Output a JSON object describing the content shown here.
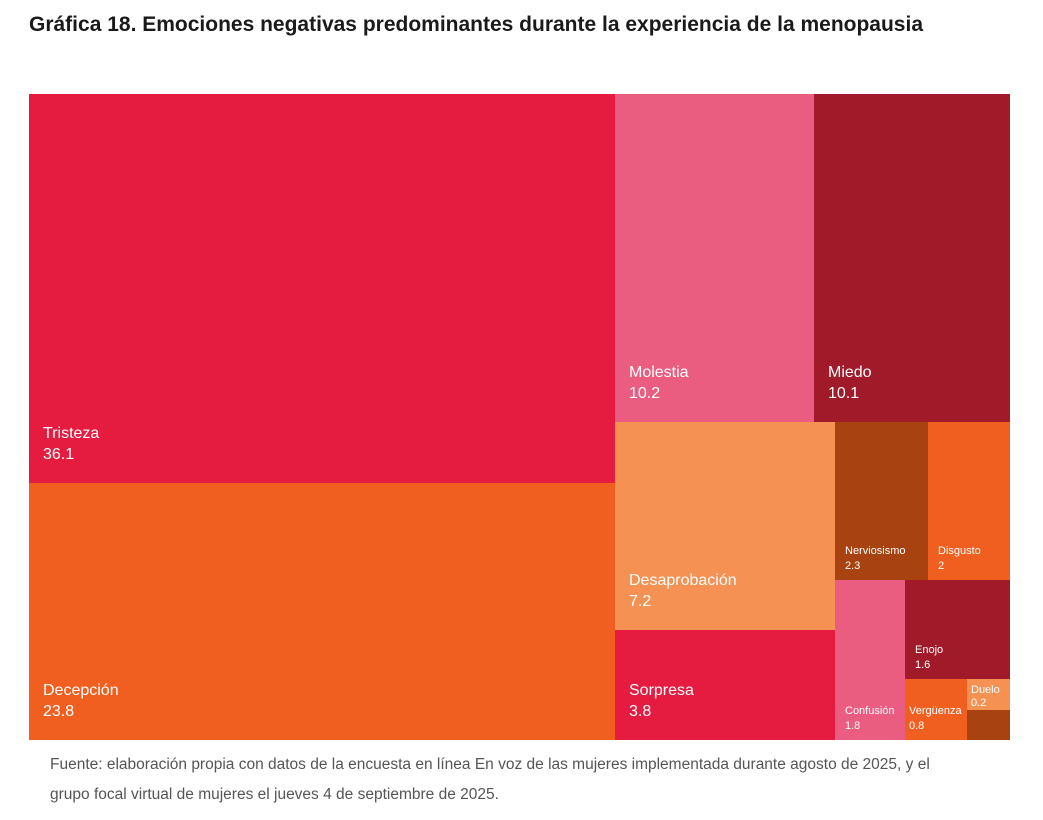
{
  "chart_data": {
    "type": "treemap",
    "title": "Gráfica 18. Emociones negativas predominantes durante la experiencia de la menopausia",
    "source": "Fuente: elaboración propia con datos de la encuesta en línea En voz de las mujeres implementada durante agosto de 2025, y el grupo focal virtual de mujeres el jueves 4 de septiembre de 2025.",
    "items": [
      {
        "name": "Tristeza",
        "value": "36.1",
        "color": "#e51c40"
      },
      {
        "name": "Decepción",
        "value": "23.8",
        "color": "#f05f20"
      },
      {
        "name": "Molestia",
        "value": "10.2",
        "color": "#ea5c80"
      },
      {
        "name": "Miedo",
        "value": "10.1",
        "color": "#a11a29"
      },
      {
        "name": "Desaprobación",
        "value": "7.2",
        "color": "#f59153"
      },
      {
        "name": "Sorpresa",
        "value": "3.8",
        "color": "#e51c40"
      },
      {
        "name": "Nerviosismo",
        "value": "2.3",
        "color": "#a84210"
      },
      {
        "name": "Disgusto",
        "value": "2",
        "color": "#f05f20"
      },
      {
        "name": "Confusión",
        "value": "1.8",
        "color": "#ea5c80"
      },
      {
        "name": "Enojo",
        "value": "1.6",
        "color": "#a11a29"
      },
      {
        "name": "Vergüenza",
        "value": "0.8",
        "color": "#f05f20"
      },
      {
        "name": "Duelo",
        "value": "0.2",
        "color": "#f59153"
      },
      {
        "name": "",
        "value": "",
        "color": "#a84210"
      }
    ]
  }
}
